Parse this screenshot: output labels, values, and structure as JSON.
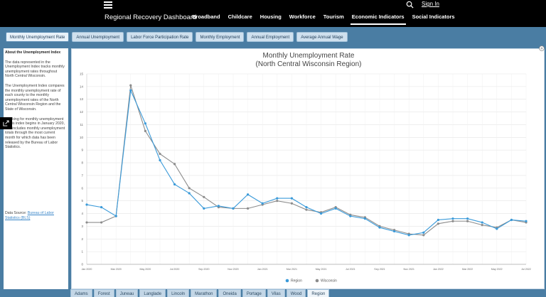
{
  "header": {
    "app_title": "Regional Recovery Dashboard",
    "sign_in": "Sign In",
    "nav": [
      "Broadband",
      "Childcare",
      "Housing",
      "Workforce",
      "Tourism",
      "Economic Indicators",
      "Social Indicators"
    ],
    "active_nav": "Economic Indicators"
  },
  "tabs": [
    "Monthly Unemployment Rate",
    "Annual Unemployment",
    "Labor Force Participation Rate",
    "Monthly Employment",
    "Annual Employment",
    "Average Annual Wage"
  ],
  "active_tab": "Monthly Unemployment Rate",
  "side": {
    "title": "About the Unemployment Index",
    "p1": "The data represented in the Unemployment Index tracks monthly unemployment rates throughout North Central Wisconsin.",
    "p2": "The Unemployment Index compares the monthly unemployment rate of each county to the monthly unemployment rates of the North Central Wisconsin Region and the State of Wisconsin.",
    "p3": "Tracking for monthly unemployment in this index begins in January 2020, and includes monthly unemployment totals through the most current month for which data has been released by the Bureau of Labor Statistics.",
    "source_label": "Data Source:",
    "source_link": "Bureau of Labor Statistics (BLS)"
  },
  "chart_data": {
    "type": "line",
    "title": "Monthly Unemployment Rate",
    "subtitle": "(North Central Wisconsin Region)",
    "xlabel": "",
    "ylabel": "",
    "ylim": [
      0,
      15
    ],
    "yticks": [
      0,
      1,
      2,
      3,
      4,
      5,
      6,
      7,
      8,
      9,
      10,
      11,
      12,
      13,
      14,
      15
    ],
    "grid": true,
    "legend_position": "bottom-center",
    "x": [
      "Jan 2020",
      "Feb 2020",
      "Mar 2020",
      "Apr 2020",
      "May 2020",
      "Jun 2020",
      "Jul 2020",
      "Aug 2020",
      "Sep 2020",
      "Oct 2020",
      "Nov 2020",
      "Dec 2020",
      "Jan 2021",
      "Feb 2021",
      "Mar 2021",
      "Apr 2021",
      "May 2021",
      "Jun 2021",
      "Jul 2021",
      "Aug 2021",
      "Sep 2021",
      "Oct 2021",
      "Nov 2021",
      "Dec 2021",
      "Jan 2022",
      "Feb 2022",
      "Mar 2022",
      "Apr 2022",
      "May 2022",
      "Jun 2022",
      "Jul 2022"
    ],
    "xtick_labels": [
      "Jan 2020",
      "Mar 2020",
      "May 2020",
      "Jul 2020",
      "Sep 2020",
      "Nov 2020",
      "Jan 2021",
      "Mar 2021",
      "May 2021",
      "Jul 2021",
      "Sep 2021",
      "Nov 2021",
      "Jan 2022",
      "Mar 2022",
      "May 2022",
      "Jul 2022"
    ],
    "series": [
      {
        "name": "Region",
        "color": "#3a9ad9",
        "values": [
          4.7,
          4.5,
          3.8,
          13.7,
          11.1,
          8.2,
          6.3,
          5.6,
          4.4,
          4.6,
          4.4,
          5.5,
          4.8,
          5.2,
          5.2,
          4.5,
          4.0,
          4.4,
          3.8,
          3.6,
          2.9,
          2.6,
          2.3,
          2.5,
          3.5,
          3.6,
          3.6,
          3.3,
          2.8,
          3.5,
          3.4
        ]
      },
      {
        "name": "Wisconsin",
        "color": "#8c8c8c",
        "values": [
          3.3,
          3.3,
          3.8,
          14.1,
          10.5,
          8.7,
          7.9,
          6.0,
          5.3,
          4.5,
          4.4,
          4.4,
          4.7,
          5.0,
          4.8,
          4.3,
          4.1,
          4.5,
          3.9,
          3.7,
          3.0,
          2.7,
          2.4,
          2.3,
          3.2,
          3.4,
          3.4,
          3.1,
          2.9,
          3.5,
          3.3
        ]
      }
    ]
  },
  "counties": [
    "Adams",
    "Forest",
    "Juneau",
    "Langlade",
    "Lincoln",
    "Marathon",
    "Oneida",
    "Portage",
    "Vilas",
    "Wood",
    "Region"
  ],
  "active_county": "Region"
}
